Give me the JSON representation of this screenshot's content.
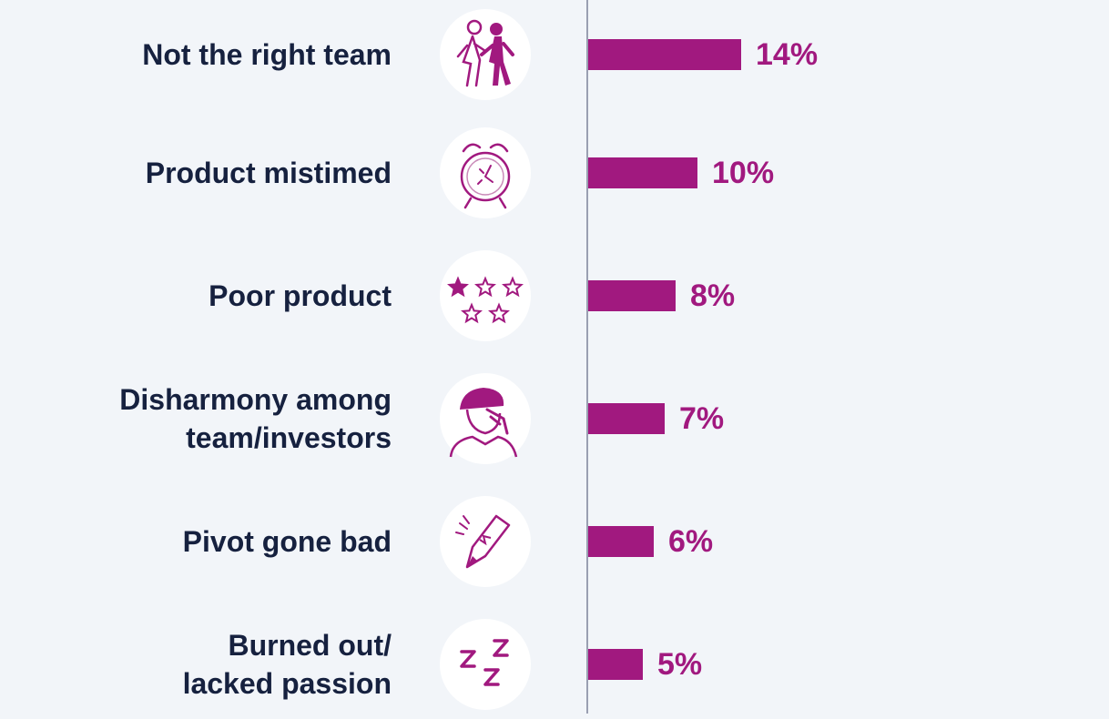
{
  "chart_data": {
    "type": "bar",
    "orientation": "horizontal",
    "categories": [
      "Not the right team",
      "Product mistimed",
      "Poor product",
      "Disharmony among\nteam/investors",
      "Pivot gone bad",
      "Burned out/\nlacked passion"
    ],
    "values": [
      14,
      10,
      8,
      7,
      6,
      5
    ],
    "value_labels": [
      "14%",
      "10%",
      "8%",
      "7%",
      "6%",
      "5%"
    ],
    "icons": [
      "people-walking-icon",
      "alarm-clock-icon",
      "one-star-rating-icon",
      "stressed-person-icon",
      "broken-pencil-icon",
      "sleeping-zzz-icon"
    ],
    "xlim": [
      0,
      14
    ],
    "grid": false,
    "colors": {
      "bar": "#a1197f",
      "value_text": "#a1197f",
      "label_text": "#16213f",
      "background": "#f2f5f9",
      "axis": "#9a9fb2"
    }
  }
}
